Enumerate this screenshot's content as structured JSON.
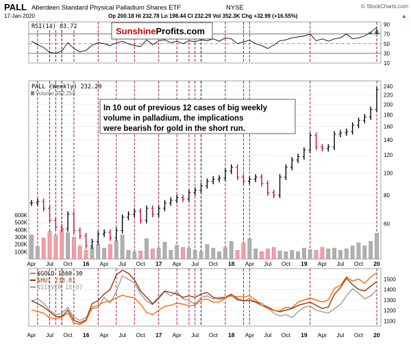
{
  "header": {
    "symbol": "PALL",
    "name": "Aberdeen Standard Physical Palladium Shares ETF",
    "exchange": "NYSE",
    "date": "17-Jan-2020",
    "stats": "Op 200.18  Hi 232.78  Lo 198.44  Cl 232.29  Vol 352.3K  Chg +32.99 (+16.55%)",
    "stats_arrow": "▲",
    "watermark": "© StockCharts.com"
  },
  "logo": {
    "part1": "Sunshine",
    "part2": "Profits.com"
  },
  "annotation": {
    "lines": [
      "In 10 out of previous 12 cases of big weekly",
      "volume in palladium, the implications",
      "were bearish for gold in the short run."
    ]
  },
  "colors": {
    "up": "#000000",
    "down": "#cc0033",
    "gold": "#ff6600",
    "hui": "#993300",
    "silver": "#999999",
    "marker": "#990033",
    "rsi_fill": "#336633"
  },
  "chart_data": [
    {
      "type": "line",
      "title": "RSI(14) 83.72",
      "ylim": [
        10,
        95
      ],
      "y_ticks": [
        10,
        30,
        50,
        70,
        90
      ],
      "reference_lines": [
        30,
        50,
        70
      ],
      "x": [
        "2015-04",
        "2015-05",
        "2015-06",
        "2015-07",
        "2015-08",
        "2015-09",
        "2015-10",
        "2015-11",
        "2015-12",
        "2016-01",
        "2016-02",
        "2016-03",
        "2016-04",
        "2016-05",
        "2016-06",
        "2016-07",
        "2016-08",
        "2016-09",
        "2016-10",
        "2016-11",
        "2016-12",
        "2017-01",
        "2017-02",
        "2017-03",
        "2017-04",
        "2017-05",
        "2017-06",
        "2017-07",
        "2017-08",
        "2017-09",
        "2017-10",
        "2017-11",
        "2017-12",
        "2018-01",
        "2018-02",
        "2018-03",
        "2018-04",
        "2018-05",
        "2018-06",
        "2018-07",
        "2018-08",
        "2018-09",
        "2018-10",
        "2018-11",
        "2018-12",
        "2019-01",
        "2019-02",
        "2019-03",
        "2019-04",
        "2019-05",
        "2019-06",
        "2019-07",
        "2019-08",
        "2019-09",
        "2019-10",
        "2019-11",
        "2019-12",
        "2020-01"
      ],
      "values": [
        55,
        48,
        42,
        32,
        30,
        35,
        52,
        40,
        33,
        36,
        47,
        52,
        50,
        46,
        52,
        55,
        50,
        46,
        44,
        58,
        48,
        56,
        58,
        52,
        55,
        50,
        56,
        54,
        58,
        56,
        60,
        55,
        62,
        60,
        50,
        54,
        57,
        50,
        46,
        40,
        47,
        56,
        58,
        62,
        64,
        66,
        70,
        56,
        60,
        55,
        60,
        62,
        70,
        60,
        62,
        66,
        74,
        84
      ]
    },
    {
      "type": "line",
      "title": "PALL (Weekly) 232.29",
      "secondary_label": "Volume 352,259",
      "scale": "log",
      "ylim": [
        42,
        250
      ],
      "y_ticks": [
        60,
        80,
        100,
        120,
        140,
        160,
        180,
        200,
        220,
        240
      ],
      "x_ticks": [
        "Apr",
        "Jul",
        "Oct",
        "16",
        "Apr",
        "Jul",
        "Oct",
        "17",
        "Apr",
        "Jul",
        "Oct",
        "18",
        "Apr",
        "Jul",
        "Oct",
        "19",
        "Apr",
        "Jul",
        "Oct",
        "20"
      ],
      "x": [
        "2015-04",
        "2015-05",
        "2015-06",
        "2015-07",
        "2015-08",
        "2015-09",
        "2015-10",
        "2015-11",
        "2015-12",
        "2016-01",
        "2016-02",
        "2016-03",
        "2016-04",
        "2016-05",
        "2016-06",
        "2016-07",
        "2016-08",
        "2016-09",
        "2016-10",
        "2016-11",
        "2016-12",
        "2017-01",
        "2017-02",
        "2017-03",
        "2017-04",
        "2017-05",
        "2017-06",
        "2017-07",
        "2017-08",
        "2017-09",
        "2017-10",
        "2017-11",
        "2017-12",
        "2018-01",
        "2018-02",
        "2018-03",
        "2018-04",
        "2018-05",
        "2018-06",
        "2018-07",
        "2018-08",
        "2018-09",
        "2018-10",
        "2018-11",
        "2018-12",
        "2019-01",
        "2019-02",
        "2019-03",
        "2019-04",
        "2019-05",
        "2019-06",
        "2019-07",
        "2019-08",
        "2019-09",
        "2019-10",
        "2019-11",
        "2019-12",
        "2020-01"
      ],
      "values": [
        74,
        75,
        70,
        62,
        58,
        57,
        66,
        56,
        53,
        48,
        50,
        54,
        55,
        52,
        56,
        64,
        66,
        68,
        62,
        70,
        66,
        70,
        74,
        76,
        78,
        77,
        82,
        84,
        88,
        92,
        94,
        95,
        102,
        106,
        96,
        92,
        94,
        96,
        90,
        82,
        80,
        96,
        106,
        114,
        118,
        126,
        146,
        130,
        128,
        130,
        148,
        150,
        152,
        162,
        170,
        176,
        190,
        232
      ]
    },
    {
      "type": "bar",
      "title": "Volume",
      "ylim": [
        0,
        750000
      ],
      "y_ticks": [
        100000,
        200000,
        300000,
        400000,
        500000,
        600000
      ],
      "y_tick_labels": [
        "100K",
        "200K",
        "300K",
        "400K",
        "500K",
        "600K"
      ],
      "values": [
        330000,
        170000,
        290000,
        380000,
        320000,
        400000,
        360000,
        300000,
        180000,
        120000,
        160000,
        200000,
        150000,
        200000,
        250000,
        330000,
        120000,
        100000,
        110000,
        280000,
        140000,
        150000,
        230000,
        120000,
        190000,
        160000,
        150000,
        120000,
        100000,
        200000,
        150000,
        100000,
        160000,
        240000,
        120000,
        220000,
        280000,
        140000,
        100000,
        140000,
        160000,
        110000,
        100000,
        120000,
        100000,
        150000,
        130000,
        120000,
        160000,
        140000,
        150000,
        120000,
        140000,
        180000,
        220000,
        180000,
        240000,
        352259
      ]
    },
    {
      "type": "line",
      "x_ticks": [
        "Apr",
        "Jul",
        "Oct",
        "16",
        "Apr",
        "Jul",
        "Oct",
        "17",
        "Apr",
        "Jul",
        "Oct",
        "18",
        "Apr",
        "Jul",
        "Oct",
        "19",
        "Apr",
        "Jul",
        "Oct",
        "20"
      ],
      "y_ticks": [
        1100,
        1200,
        1300,
        1400,
        1500
      ],
      "series": [
        {
          "name": "$GOLD 1560.30",
          "color": "#ff6600",
          "ylim": [
            1050,
            1600
          ],
          "values": [
            1205,
            1190,
            1175,
            1130,
            1120,
            1135,
            1175,
            1080,
            1065,
            1100,
            1230,
            1250,
            1280,
            1290,
            1320,
            1345,
            1330,
            1320,
            1260,
            1180,
            1160,
            1200,
            1240,
            1250,
            1270,
            1260,
            1245,
            1250,
            1300,
            1310,
            1280,
            1280,
            1320,
            1345,
            1330,
            1330,
            1340,
            1300,
            1250,
            1220,
            1200,
            1195,
            1230,
            1225,
            1280,
            1300,
            1320,
            1300,
            1280,
            1300,
            1410,
            1440,
            1520,
            1480,
            1500,
            1460,
            1520,
            1560
          ]
        },
        {
          "name": "$HUI 238.81",
          "color": "#993300",
          "ylim": [
            100,
            280
          ],
          "values": [
            180,
            170,
            160,
            145,
            130,
            130,
            150,
            118,
            110,
            120,
            170,
            180,
            200,
            215,
            260,
            275,
            265,
            245,
            210,
            190,
            170,
            190,
            210,
            205,
            200,
            190,
            195,
            190,
            200,
            205,
            190,
            185,
            190,
            200,
            185,
            180,
            180,
            175,
            165,
            160,
            150,
            145,
            150,
            155,
            165,
            170,
            175,
            165,
            155,
            160,
            200,
            220,
            250,
            230,
            215,
            210,
            225,
            239
          ]
        },
        {
          "name": "$SILVER 18.07",
          "color": "#999999",
          "ylim": [
            13,
            21
          ],
          "values": [
            16.5,
            16.8,
            16.2,
            15.2,
            14.6,
            14.8,
            15.6,
            14.2,
            13.8,
            14.2,
            15.4,
            15.6,
            17.0,
            16.2,
            17.8,
            20.0,
            19.5,
            19.0,
            17.5,
            16.5,
            16.0,
            16.8,
            17.8,
            17.2,
            17.8,
            16.8,
            16.6,
            16.0,
            17.0,
            17.2,
            16.8,
            17.0,
            17.0,
            17.2,
            16.6,
            16.5,
            16.8,
            16.4,
            16.2,
            15.6,
            14.8,
            14.4,
            14.6,
            14.2,
            15.0,
            15.6,
            15.8,
            15.2,
            15.0,
            14.8,
            15.4,
            16.0,
            17.2,
            18.2,
            17.6,
            16.8,
            17.2,
            18.07
          ]
        }
      ]
    }
  ],
  "markers": {
    "description_none": "",
    "red_dates": [
      "2015-05",
      "2015-07",
      "2015-08",
      "2015-11",
      "2016-03",
      "2016-06",
      "2016-09",
      "2017-01",
      "2017-04",
      "2017-06",
      "2017-07",
      "2017-12",
      "2018-03",
      "2018-04",
      "2019-02",
      "2020-01"
    ],
    "black_dates": [
      "2015-09",
      "2017-08"
    ]
  }
}
